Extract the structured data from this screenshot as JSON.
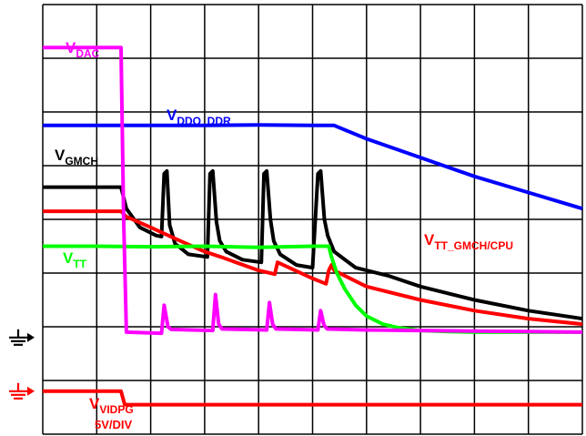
{
  "chart_data": {
    "type": "line",
    "title": "",
    "xlabel": "",
    "ylabel": "",
    "grid": true,
    "grid_divisions": {
      "x": 10,
      "y": 8
    },
    "xlim": [
      0,
      10
    ],
    "ylim": [
      0,
      8
    ],
    "colors": {
      "vdac": "#ff00ff",
      "vddq": "#0000ff",
      "vgmch": "#000000",
      "vtt_gmch": "#ff0000",
      "vtt": "#00ff00",
      "vidpg": "#ff0000",
      "grid": "#000000"
    },
    "labels": {
      "vdac": {
        "main": "V",
        "sub": "DAC"
      },
      "vddq": {
        "main": "V",
        "sub": "DDQ_DDR"
      },
      "vgmch": {
        "main": "V",
        "sub": "GMCH"
      },
      "vtt_gmch": {
        "main": "V",
        "sub": "TT_GMCH/CPU"
      },
      "vtt": {
        "main": "V",
        "sub": "TT"
      },
      "vidpg": {
        "main": "V",
        "sub": "VIDPG",
        "scale": "5V/DIV"
      }
    },
    "ground_markers": [
      {
        "name": "ground-marker-black",
        "color": "#000000",
        "level": 1.8
      },
      {
        "name": "ground-marker-red",
        "color": "#ff0000",
        "level": 0.8
      }
    ],
    "series": [
      {
        "key": "vdac",
        "x": [
          0,
          1.45,
          1.5,
          1.55,
          2.2,
          2.25,
          2.32,
          2.38,
          3.15,
          3.2,
          3.26,
          3.32,
          4.15,
          4.2,
          4.26,
          4.32,
          5.1,
          5.15,
          5.21,
          5.27,
          6.0,
          7.0,
          8.0,
          9.0,
          10.0
        ],
        "y": [
          7.2,
          7.2,
          4.0,
          1.9,
          1.88,
          2.4,
          2.0,
          1.95,
          1.93,
          2.6,
          2.05,
          1.96,
          1.94,
          2.45,
          2.05,
          1.96,
          1.94,
          2.3,
          2.03,
          1.96,
          1.94,
          1.93,
          1.92,
          1.91,
          1.9
        ]
      },
      {
        "key": "vddq",
        "x": [
          0,
          1.0,
          2.0,
          3.0,
          4.0,
          5.0,
          5.4,
          6.0,
          7.0,
          8.0,
          9.0,
          10.0
        ],
        "y": [
          5.75,
          5.75,
          5.75,
          5.75,
          5.76,
          5.75,
          5.75,
          5.5,
          5.15,
          4.8,
          4.5,
          4.2
        ]
      },
      {
        "key": "vgmch",
        "x": [
          0,
          1.45,
          1.55,
          1.8,
          2.1,
          2.2,
          2.25,
          2.3,
          2.35,
          2.45,
          2.7,
          3.05,
          3.1,
          3.15,
          3.22,
          3.28,
          3.4,
          3.7,
          4.05,
          4.1,
          4.15,
          4.22,
          4.28,
          4.4,
          4.7,
          5.0,
          5.1,
          5.15,
          5.22,
          5.28,
          5.4,
          5.8,
          6.4,
          7.0,
          8.0,
          9.0,
          10.0
        ],
        "y": [
          4.6,
          4.6,
          4.2,
          3.85,
          3.7,
          3.68,
          4.85,
          4.9,
          3.9,
          3.55,
          3.35,
          3.3,
          4.85,
          4.9,
          3.95,
          3.6,
          3.4,
          3.25,
          3.2,
          4.85,
          4.9,
          4.0,
          3.6,
          3.35,
          3.15,
          3.1,
          4.85,
          4.9,
          4.0,
          3.7,
          3.4,
          3.1,
          2.95,
          2.75,
          2.5,
          2.3,
          2.15
        ]
      },
      {
        "key": "vtt_gmch",
        "x": [
          0,
          1.45,
          1.55,
          2.0,
          2.5,
          3.0,
          3.3,
          4.0,
          4.3,
          4.35,
          5.0,
          5.25,
          5.3,
          5.35,
          5.4,
          6.0,
          7.0,
          8.0,
          9.0,
          10.0
        ],
        "y": [
          4.15,
          4.15,
          4.05,
          3.85,
          3.62,
          3.4,
          3.3,
          3.05,
          2.98,
          3.2,
          2.9,
          2.8,
          3.05,
          3.15,
          3.05,
          2.75,
          2.5,
          2.3,
          2.15,
          2.05
        ]
      },
      {
        "key": "vtt",
        "x": [
          0,
          1.0,
          2.0,
          3.0,
          4.0,
          5.0,
          5.3,
          5.35,
          5.45,
          5.6,
          5.8,
          6.0,
          6.3,
          6.6,
          7.0,
          7.5,
          8.0,
          9.0,
          10.0
        ],
        "y": [
          3.5,
          3.5,
          3.49,
          3.5,
          3.48,
          3.5,
          3.5,
          3.3,
          3.0,
          2.7,
          2.4,
          2.2,
          2.05,
          1.98,
          1.93,
          1.91,
          1.9,
          1.9,
          1.9
        ]
      },
      {
        "key": "vidpg",
        "x": [
          0,
          1.45,
          1.52,
          10.0
        ],
        "y": [
          0.8,
          0.8,
          0.55,
          0.55
        ]
      }
    ]
  }
}
